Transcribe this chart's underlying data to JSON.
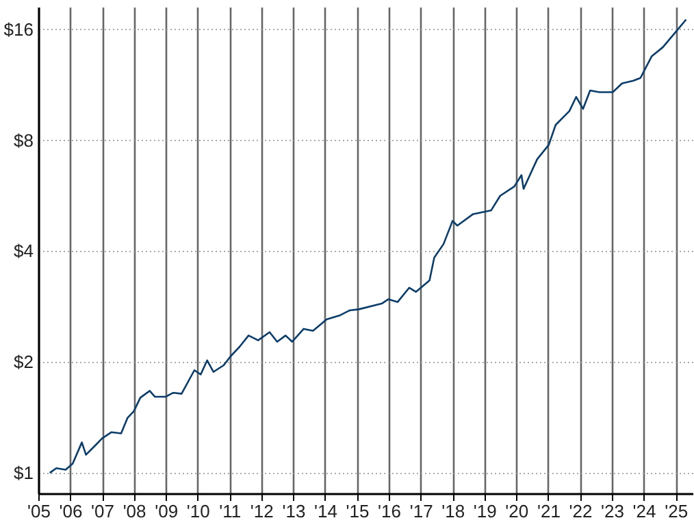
{
  "chart_data": {
    "type": "line",
    "log": "y",
    "grid": true,
    "marker": "none",
    "line_style": "solid",
    "xlim": [
      "2005-01-01",
      "2025-07-15"
    ],
    "xticks": [
      {
        "value": "2005-01-01",
        "label": "'05"
      },
      {
        "value": "2006-01-01",
        "label": "'06"
      },
      {
        "value": "2007-01-01",
        "label": "'07"
      },
      {
        "value": "2008-01-01",
        "label": "'08"
      },
      {
        "value": "2009-01-01",
        "label": "'09"
      },
      {
        "value": "2010-01-01",
        "label": "'10"
      },
      {
        "value": "2011-01-01",
        "label": "'11"
      },
      {
        "value": "2012-01-01",
        "label": "'12"
      },
      {
        "value": "2013-01-01",
        "label": "'13"
      },
      {
        "value": "2014-01-01",
        "label": "'14"
      },
      {
        "value": "2015-01-01",
        "label": "'15"
      },
      {
        "value": "2016-01-01",
        "label": "'16"
      },
      {
        "value": "2017-01-01",
        "label": "'17"
      },
      {
        "value": "2018-01-01",
        "label": "'18"
      },
      {
        "value": "2019-01-01",
        "label": "'19"
      },
      {
        "value": "2020-01-01",
        "label": "'20"
      },
      {
        "value": "2021-01-01",
        "label": "'21"
      },
      {
        "value": "2022-01-01",
        "label": "'22"
      },
      {
        "value": "2023-01-01",
        "label": "'23"
      },
      {
        "value": "2024-01-01",
        "label": "'24"
      },
      {
        "value": "2025-01-01",
        "label": "'25"
      }
    ],
    "ylim": [
      0.88,
      18.4
    ],
    "yticks": [
      {
        "value": 1,
        "label": "$1"
      },
      {
        "value": 2,
        "label": "$2"
      },
      {
        "value": 4,
        "label": "$4"
      },
      {
        "value": 8,
        "label": "$8"
      },
      {
        "value": 16,
        "label": "$16"
      }
    ],
    "x": [
      "2005-05-12",
      "2005-07-26",
      "2005-11-10",
      "2006-01-30",
      "2006-05-15",
      "2006-07-01",
      "2006-10-20",
      "2007-01-01",
      "2007-04-20",
      "2007-08-08",
      "2007-10-20",
      "2008-01-01",
      "2008-03-15",
      "2008-07-01",
      "2008-08-28",
      "2009-01-01",
      "2009-03-28",
      "2009-07-01",
      "2009-11-25",
      "2010-02-05",
      "2010-04-20",
      "2010-07-01",
      "2010-10-27",
      "2011-01-12",
      "2011-04-27",
      "2011-08-08",
      "2011-11-25",
      "2012-04-05",
      "2012-07-01",
      "2012-10-05",
      "2012-12-20",
      "2013-05-01",
      "2013-08-15",
      "2014-01-20",
      "2014-06-25",
      "2014-10-08",
      "2015-01-22",
      "2015-10-12",
      "2015-12-28",
      "2016-04-12",
      "2016-08-22",
      "2016-11-07",
      "2017-04-12",
      "2017-06-05",
      "2017-09-20",
      "2018-01-01",
      "2018-02-25",
      "2018-08-25",
      "2019-03-20",
      "2019-07-01",
      "2019-12-10",
      "2020-03-01",
      "2020-03-25",
      "2020-08-28",
      "2021-01-08",
      "2021-03-28",
      "2021-09-01",
      "2021-11-18",
      "2022-02-05",
      "2022-04-27",
      "2022-08-08",
      "2023-01-12",
      "2023-04-27",
      "2023-09-05",
      "2023-11-25",
      "2024-04-01",
      "2024-08-08",
      "2024-12-20",
      "2025-05-01"
    ],
    "series": [
      {
        "color": "#0b3d6b",
        "values": [
          1.0,
          1.03,
          1.02,
          1.06,
          1.21,
          1.12,
          1.19,
          1.24,
          1.29,
          1.28,
          1.41,
          1.47,
          1.6,
          1.67,
          1.61,
          1.61,
          1.65,
          1.64,
          1.9,
          1.85,
          2.02,
          1.88,
          1.96,
          2.07,
          2.2,
          2.36,
          2.29,
          2.41,
          2.27,
          2.36,
          2.27,
          2.46,
          2.43,
          2.61,
          2.68,
          2.76,
          2.78,
          2.88,
          2.96,
          2.91,
          3.18,
          3.1,
          3.33,
          3.84,
          4.18,
          4.83,
          4.69,
          5.04,
          5.16,
          5.65,
          5.99,
          6.43,
          5.9,
          7.1,
          7.77,
          8.8,
          9.59,
          10.48,
          9.73,
          10.91,
          10.8,
          10.8,
          11.4,
          11.6,
          11.8,
          13.5,
          14.3,
          15.6,
          17.0
        ]
      }
    ]
  }
}
